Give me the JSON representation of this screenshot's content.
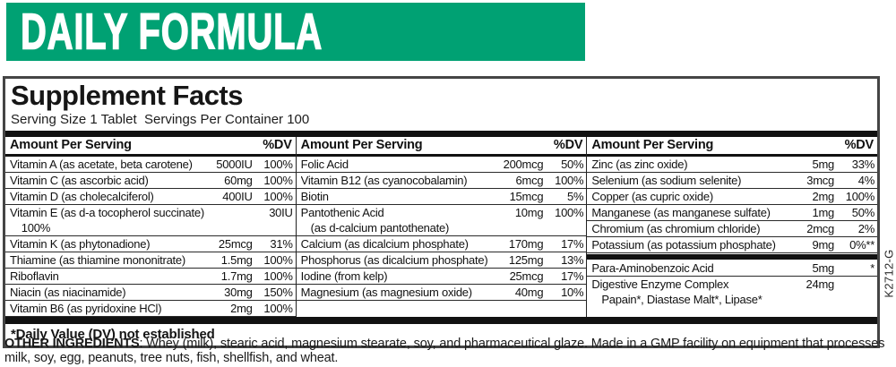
{
  "colors": {
    "accent_green": "#00a173",
    "bar_black": "#111111"
  },
  "banner": {
    "title": "DAILY FORMULA"
  },
  "panel": {
    "title": "Supplement Facts",
    "serving_line": "Serving Size 1 Tablet  Servings Per Container 100",
    "col_header": {
      "amount": "Amount Per Serving",
      "dv": "%DV"
    },
    "columns": [
      {
        "rows": [
          {
            "name": "Vitamin A (as acetate, beta carotene)",
            "amount": "5000IU",
            "dv": "100%"
          },
          {
            "name": "Vitamin C (as ascorbic acid)",
            "amount": "60mg",
            "dv": "100%"
          },
          {
            "name": "Vitamin D (as cholecalciferol)",
            "amount": "400IU",
            "dv": "100%"
          },
          {
            "name": "Vitamin E (as d-a tocopherol succinate)",
            "amount": "30IU",
            "dv": "100%"
          },
          {
            "name": "Vitamin K (as phytonadione)",
            "amount": "25mcg",
            "dv": "31%"
          },
          {
            "name": "Thiamine (as thiamine mononitrate)",
            "amount": "1.5mg",
            "dv": "100%"
          },
          {
            "name": "Riboflavin",
            "amount": "1.7mg",
            "dv": "100%"
          },
          {
            "name": "Niacin (as niacinamide)",
            "amount": "30mg",
            "dv": "150%"
          },
          {
            "name": "Vitamin B6 (as pyridoxine HCl)",
            "amount": "2mg",
            "dv": "100%"
          }
        ]
      },
      {
        "rows": [
          {
            "name": "Folic Acid",
            "amount": "200mcg",
            "dv": "50%"
          },
          {
            "name": "Vitamin B12 (as cyanocobalamin)",
            "amount": "6mcg",
            "dv": "100%"
          },
          {
            "name": "Biotin",
            "amount": "15mcg",
            "dv": "5%"
          },
          {
            "name": "Pantothenic Acid",
            "name2": "(as d-calcium pantothenate)",
            "amount": "10mg",
            "dv": "100%"
          },
          {
            "name": "Calcium (as dicalcium phosphate)",
            "amount": "170mg",
            "dv": "17%"
          },
          {
            "name": "Phosphorus (as dicalcium phosphate)",
            "amount": "125mg",
            "dv": "13%"
          },
          {
            "name": "Iodine (from kelp)",
            "amount": "25mcg",
            "dv": "17%"
          },
          {
            "name": "Magnesium (as magnesium oxide)",
            "amount": "40mg",
            "dv": "10%"
          }
        ]
      },
      {
        "rows": [
          {
            "name": "Zinc (as zinc oxide)",
            "amount": "5mg",
            "dv": "33%"
          },
          {
            "name": "Selenium (as sodium selenite)",
            "amount": "3mcg",
            "dv": "4%"
          },
          {
            "name": "Copper (as cupric oxide)",
            "amount": "2mg",
            "dv": "100%"
          },
          {
            "name": "Manganese (as manganese sulfate)",
            "amount": "1mg",
            "dv": "50%"
          },
          {
            "name": "Chromium (as chromium chloride)",
            "amount": "2mcg",
            "dv": "2%"
          },
          {
            "name": "Potassium (as potassium phosphate)",
            "amount": "9mg",
            "dv": "0%**"
          },
          {
            "divider": true
          },
          {
            "name": "Para-Aminobenzoic Acid",
            "amount": "5mg",
            "dv": "*"
          },
          {
            "name": "Digestive Enzyme Complex",
            "name2": "Papain*, Diastase Malt*, Lipase*",
            "amount": "24mg",
            "dv": ""
          }
        ]
      }
    ],
    "footnote": "*Daily Value (DV) not established"
  },
  "side_code": "K2712-G",
  "other_ingredients": {
    "label": "OTHER INGREDIENTS",
    "text": ": Whey (milk), stearic acid, magnesium stearate, soy, and pharmaceutical glaze. Made in a GMP facility on equipment that processes milk, soy, egg, peanuts, tree nuts, fish, shellfish, and wheat."
  }
}
